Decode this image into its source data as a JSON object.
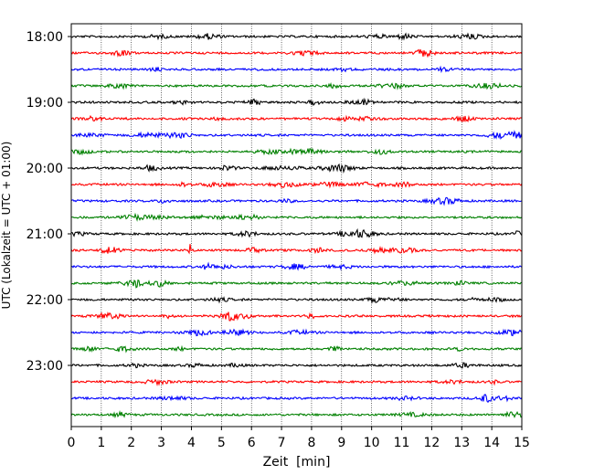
{
  "chart_data": {
    "type": "line",
    "title": "",
    "xlabel": "Zeit  [min]",
    "ylabel": "UTC (Lokalzeit = UTC + 01:00)",
    "xlim": [
      0,
      15
    ],
    "x_ticks": [
      "0",
      "1",
      "2",
      "3",
      "4",
      "5",
      "6",
      "7",
      "8",
      "9",
      "10",
      "11",
      "12",
      "13",
      "14",
      "15"
    ],
    "y_ticks": [
      {
        "label": "18:00",
        "trace": 0
      },
      {
        "label": "19:00",
        "trace": 4
      },
      {
        "label": "20:00",
        "trace": 8
      },
      {
        "label": "21:00",
        "trace": 12
      },
      {
        "label": "22:00",
        "trace": 16
      },
      {
        "label": "23:00",
        "trace": 20
      }
    ],
    "grid": "vertical dotted at each minute",
    "trace_colors": [
      "#000000",
      "#ff0000",
      "#0000ff",
      "#008000"
    ],
    "series": [
      {
        "start": "18:00",
        "color": "#000000"
      },
      {
        "start": "18:15",
        "color": "#ff0000"
      },
      {
        "start": "18:30",
        "color": "#0000ff"
      },
      {
        "start": "18:45",
        "color": "#008000"
      },
      {
        "start": "19:00",
        "color": "#000000"
      },
      {
        "start": "19:15",
        "color": "#ff0000"
      },
      {
        "start": "19:30",
        "color": "#0000ff"
      },
      {
        "start": "19:45",
        "color": "#008000"
      },
      {
        "start": "20:00",
        "color": "#000000"
      },
      {
        "start": "20:15",
        "color": "#ff0000"
      },
      {
        "start": "20:30",
        "color": "#0000ff"
      },
      {
        "start": "20:45",
        "color": "#008000"
      },
      {
        "start": "21:00",
        "color": "#000000"
      },
      {
        "start": "21:15",
        "color": "#ff0000",
        "events": [
          {
            "minute": 3.95,
            "amplitude": "large"
          }
        ]
      },
      {
        "start": "21:30",
        "color": "#0000ff"
      },
      {
        "start": "21:45",
        "color": "#008000"
      },
      {
        "start": "22:00",
        "color": "#000000"
      },
      {
        "start": "22:15",
        "color": "#ff0000",
        "events": [
          {
            "minute": 9.45,
            "amplitude": "medium"
          }
        ]
      },
      {
        "start": "22:30",
        "color": "#0000ff"
      },
      {
        "start": "22:45",
        "color": "#008000"
      },
      {
        "start": "23:00",
        "color": "#000000"
      },
      {
        "start": "23:15",
        "color": "#ff0000"
      },
      {
        "start": "23:30",
        "color": "#0000ff"
      },
      {
        "start": "23:45",
        "color": "#008000"
      }
    ]
  }
}
